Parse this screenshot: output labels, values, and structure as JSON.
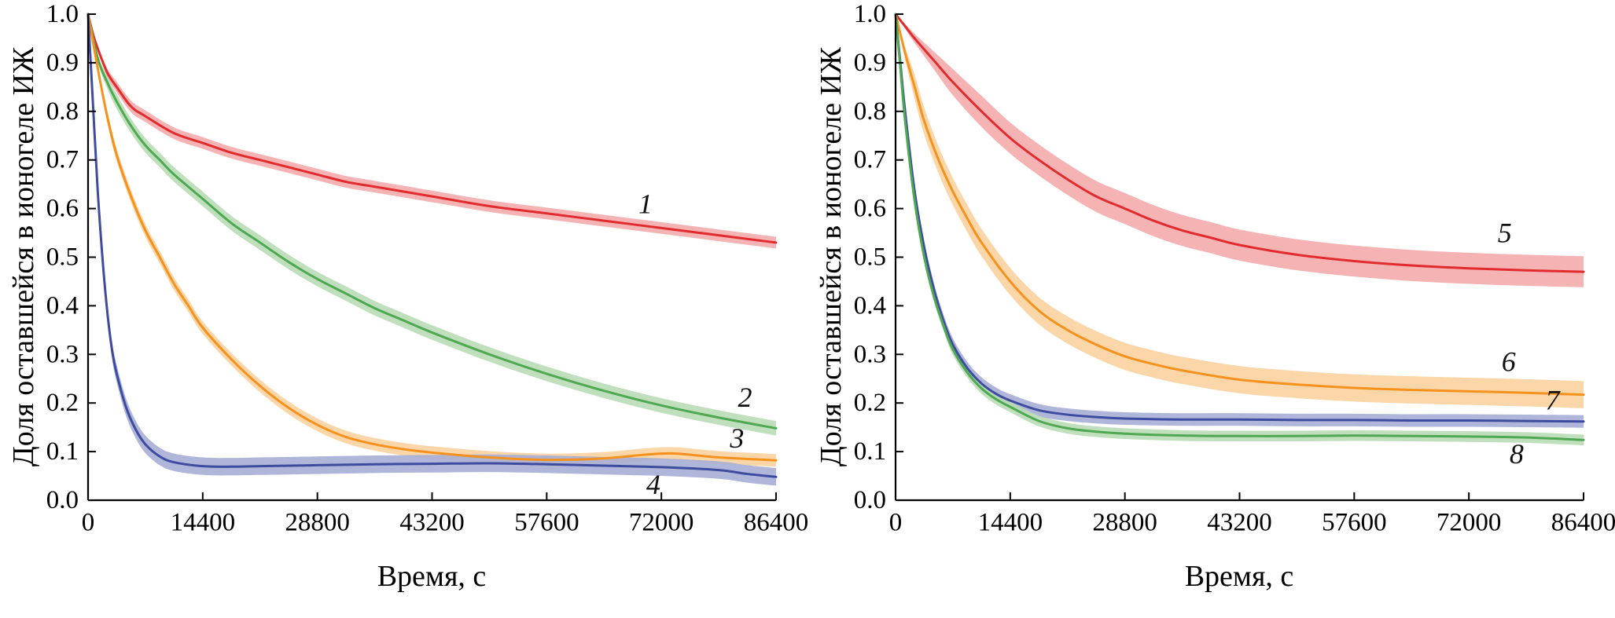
{
  "page": {
    "background": "#ffffff",
    "description": "Two-panel scientific line chart with shaded error bands"
  },
  "chart_data": [
    {
      "id": "left",
      "type": "line",
      "title": "",
      "xlabel": "Время, с",
      "ylabel": "Доля оставшейся в ионогеле ИЖ",
      "xlim": [
        0,
        86400
      ],
      "ylim": [
        0,
        1.0
      ],
      "xticks": [
        0,
        14400,
        28800,
        43200,
        57600,
        72000,
        86400
      ],
      "yticks": [
        0,
        0.1,
        0.2,
        0.3,
        0.4,
        0.5,
        0.6,
        0.7,
        0.8,
        0.9,
        1.0
      ],
      "grid": false,
      "legend_position": "inline-curve-numbers",
      "series": [
        {
          "name": "1",
          "color": "#e22b2e",
          "band_color": "#f4abac",
          "band": 0.012,
          "label_pos": {
            "x": 70000,
            "y": 0.61
          },
          "x": [
            0,
            600,
            1200,
            2400,
            3600,
            5400,
            7200,
            10800,
            14400,
            18000,
            21600,
            25200,
            28800,
            32400,
            36000,
            43200,
            50400,
            57600,
            64800,
            72000,
            79200,
            86400
          ],
          "y": [
            1.0,
            0.96,
            0.93,
            0.88,
            0.85,
            0.81,
            0.79,
            0.755,
            0.735,
            0.715,
            0.7,
            0.685,
            0.67,
            0.655,
            0.645,
            0.625,
            0.605,
            0.59,
            0.575,
            0.56,
            0.545,
            0.53
          ]
        },
        {
          "name": "2",
          "color": "#4fa852",
          "band_color": "#b9dcb6",
          "band": 0.015,
          "label_pos": {
            "x": 82500,
            "y": 0.212
          },
          "x": [
            0,
            1200,
            2400,
            3600,
            5400,
            7200,
            9000,
            10800,
            14400,
            18000,
            21600,
            25200,
            28800,
            32400,
            36000,
            39600,
            43200,
            50400,
            57600,
            64800,
            72000,
            79200,
            86400
          ],
          "y": [
            1.0,
            0.91,
            0.86,
            0.82,
            0.77,
            0.73,
            0.7,
            0.67,
            0.62,
            0.57,
            0.53,
            0.49,
            0.455,
            0.425,
            0.395,
            0.37,
            0.345,
            0.3,
            0.26,
            0.225,
            0.195,
            0.17,
            0.148
          ]
        },
        {
          "name": "3",
          "color": "#f5921d",
          "band_color": "#fad2a0",
          "band": 0.013,
          "label_pos": {
            "x": 81500,
            "y": 0.128
          },
          "x": [
            0,
            1200,
            2400,
            3600,
            5400,
            7200,
            9000,
            10800,
            12600,
            14400,
            18000,
            21600,
            25200,
            28800,
            32400,
            36000,
            39600,
            43200,
            50400,
            57600,
            64800,
            70200,
            73800,
            79200,
            86400
          ],
          "y": [
            1.0,
            0.89,
            0.79,
            0.71,
            0.625,
            0.555,
            0.5,
            0.445,
            0.4,
            0.355,
            0.29,
            0.235,
            0.19,
            0.155,
            0.13,
            0.115,
            0.105,
            0.098,
            0.088,
            0.083,
            0.086,
            0.094,
            0.096,
            0.088,
            0.082
          ]
        },
        {
          "name": "4",
          "color": "#3e4b9e",
          "band_color": "#a7aed6",
          "band": 0.018,
          "label_pos": {
            "x": 71000,
            "y": 0.032
          },
          "x": [
            0,
            600,
            1200,
            1800,
            2400,
            3000,
            3600,
            4800,
            6000,
            7200,
            9000,
            10800,
            14400,
            18000,
            21600,
            28800,
            36000,
            43200,
            50400,
            57600,
            64800,
            72000,
            79200,
            82800,
            86400
          ],
          "y": [
            1.0,
            0.82,
            0.64,
            0.5,
            0.39,
            0.31,
            0.26,
            0.19,
            0.145,
            0.115,
            0.09,
            0.078,
            0.07,
            0.069,
            0.07,
            0.072,
            0.074,
            0.075,
            0.076,
            0.074,
            0.071,
            0.068,
            0.062,
            0.054,
            0.048
          ]
        }
      ]
    },
    {
      "id": "right",
      "type": "line",
      "title": "",
      "xlabel": "Время, с",
      "ylabel": "Доля оставшейся в ионогеле ИЖ",
      "xlim": [
        0,
        86400
      ],
      "ylim": [
        0,
        1.0
      ],
      "xticks": [
        0,
        14400,
        28800,
        43200,
        57600,
        72000,
        86400
      ],
      "yticks": [
        0,
        0.1,
        0.2,
        0.3,
        0.4,
        0.5,
        0.6,
        0.7,
        0.8,
        0.9,
        1.0
      ],
      "grid": false,
      "legend_position": "inline-curve-numbers",
      "series": [
        {
          "name": "5",
          "color": "#e22b2e",
          "band_color": "#f4abac",
          "band": 0.032,
          "label_pos": {
            "x": 76500,
            "y": 0.55
          },
          "x": [
            0,
            1200,
            2400,
            4800,
            7200,
            10800,
            14400,
            18000,
            21600,
            25200,
            28800,
            32400,
            36000,
            39600,
            43200,
            50400,
            57600,
            64800,
            72000,
            79200,
            86400
          ],
          "y": [
            1.0,
            0.975,
            0.95,
            0.905,
            0.86,
            0.8,
            0.745,
            0.7,
            0.66,
            0.625,
            0.6,
            0.575,
            0.555,
            0.54,
            0.525,
            0.505,
            0.492,
            0.483,
            0.477,
            0.473,
            0.47
          ]
        },
        {
          "name": "6",
          "color": "#f5921d",
          "band_color": "#fad2a0",
          "band": 0.028,
          "label_pos": {
            "x": 77000,
            "y": 0.285
          },
          "x": [
            0,
            1200,
            2400,
            3600,
            5400,
            7200,
            9000,
            10800,
            14400,
            18000,
            21600,
            25200,
            28800,
            32400,
            36000,
            43200,
            50400,
            57600,
            64800,
            72000,
            79200,
            86400
          ],
          "y": [
            1.0,
            0.92,
            0.85,
            0.78,
            0.7,
            0.635,
            0.58,
            0.53,
            0.45,
            0.39,
            0.35,
            0.32,
            0.296,
            0.28,
            0.267,
            0.248,
            0.238,
            0.231,
            0.227,
            0.224,
            0.221,
            0.217
          ]
        },
        {
          "name": "7",
          "color": "#3e4b9e",
          "band_color": "#a7aed6",
          "band": 0.013,
          "label_pos": {
            "x": 82500,
            "y": 0.206
          },
          "x": [
            0,
            600,
            1200,
            2400,
            3600,
            4800,
            6000,
            7200,
            9000,
            10800,
            12600,
            14400,
            18000,
            21600,
            25200,
            28800,
            36000,
            43200,
            50400,
            57600,
            64800,
            72000,
            79200,
            86400
          ],
          "y": [
            1.0,
            0.9,
            0.8,
            0.635,
            0.52,
            0.435,
            0.37,
            0.32,
            0.272,
            0.24,
            0.219,
            0.205,
            0.185,
            0.176,
            0.171,
            0.168,
            0.166,
            0.166,
            0.165,
            0.165,
            0.164,
            0.164,
            0.163,
            0.162
          ]
        },
        {
          "name": "8",
          "color": "#4fa852",
          "band_color": "#b9dcb6",
          "band": 0.011,
          "label_pos": {
            "x": 78000,
            "y": 0.095
          },
          "x": [
            0,
            600,
            1200,
            2400,
            3600,
            4800,
            6000,
            7200,
            9000,
            10800,
            12600,
            14400,
            18000,
            21600,
            25200,
            28800,
            36000,
            43200,
            50400,
            57600,
            64800,
            72000,
            79200,
            86400
          ],
          "y": [
            1.0,
            0.89,
            0.78,
            0.615,
            0.5,
            0.42,
            0.36,
            0.31,
            0.263,
            0.23,
            0.208,
            0.192,
            0.163,
            0.148,
            0.141,
            0.137,
            0.133,
            0.132,
            0.132,
            0.133,
            0.132,
            0.131,
            0.129,
            0.124
          ]
        }
      ]
    }
  ]
}
